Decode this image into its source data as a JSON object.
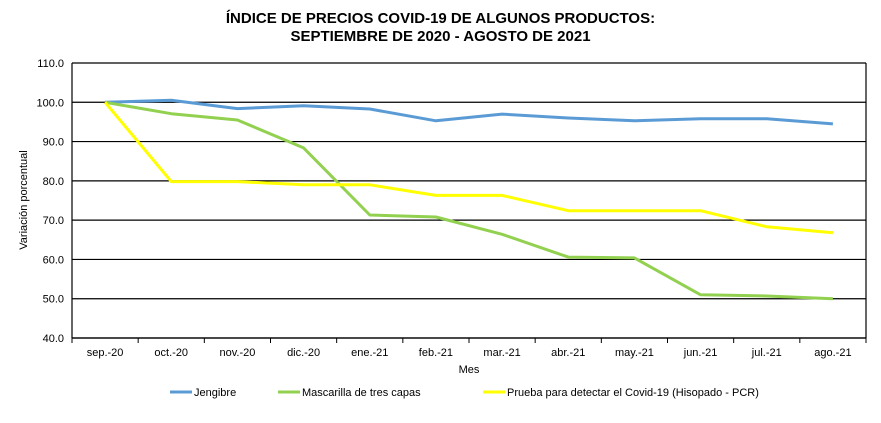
{
  "chart_data": {
    "type": "line",
    "title": "ÍNDICE DE PRECIOS COVID-19 DE ALGUNOS PRODUCTOS:",
    "subtitle": "SEPTIEMBRE DE 2020 - AGOSTO  DE 2021",
    "xlabel": "Mes",
    "ylabel": "Variación porcentual",
    "ylim": [
      40,
      110
    ],
    "yticks": [
      "40.0",
      "50.0",
      "60.0",
      "70.0",
      "80.0",
      "90.0",
      "100.0",
      "110.0"
    ],
    "grid": true,
    "legend_position": "bottom",
    "categories": [
      "sep.-20",
      "oct.-20",
      "nov.-20",
      "dic.-20",
      "ene.-21",
      "feb.-21",
      "mar.-21",
      "abr.-21",
      "may.-21",
      "jun.-21",
      "jul.-21",
      "ago.-21"
    ],
    "series": [
      {
        "name": "Jengibre",
        "color": "#5b9bd5",
        "values": [
          100.0,
          100.5,
          98.4,
          99.1,
          98.3,
          95.3,
          97.0,
          96.0,
          95.3,
          95.8,
          95.8,
          94.5
        ]
      },
      {
        "name": "Mascarilla de tres capas",
        "color": "#92d050",
        "values": [
          100.0,
          97.1,
          95.5,
          88.4,
          71.3,
          70.8,
          66.4,
          60.6,
          60.4,
          51.0,
          50.7,
          50.0
        ]
      },
      {
        "name": "Prueba para detectar el Covid-19 (Hisopado - PCR)",
        "color": "#ffff00",
        "values": [
          100.0,
          79.8,
          79.8,
          79.0,
          79.0,
          76.3,
          76.3,
          72.4,
          72.4,
          72.4,
          68.3,
          66.8
        ]
      }
    ]
  }
}
